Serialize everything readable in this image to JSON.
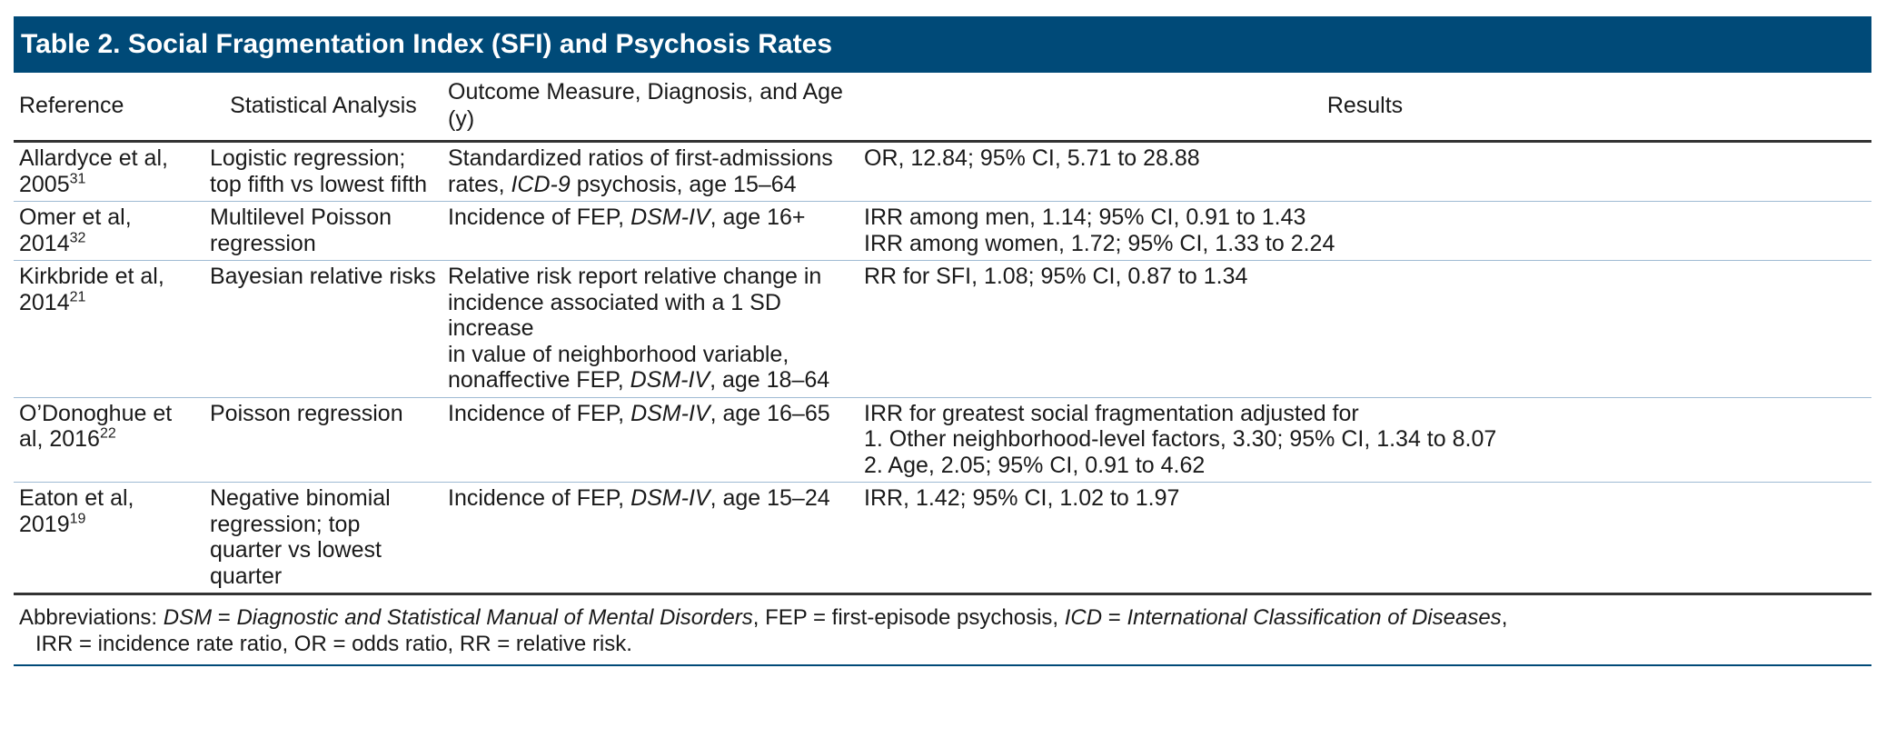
{
  "title": "Table 2. Social Fragmentation Index (SFI) and Psychosis Rates",
  "columns": [
    "Reference",
    "Statistical Analysis",
    "Outcome Measure, Diagnosis, and Age (y)",
    "Results"
  ],
  "rows": [
    {
      "ref": "Allardyce et al, 2005",
      "sup": "31",
      "analysis": "Logistic regression; top fifth vs lowest fifth",
      "outcome_html": "Standardized ratios of first-admissions<br>rates, <i>ICD-9</i> psychosis, age 15–64",
      "results": [
        "OR, 12.84; 95% CI, 5.71 to 28.88"
      ]
    },
    {
      "ref": "Omer et al, 2014",
      "sup": "32",
      "analysis": "Multilevel Poisson regression",
      "outcome_html": "Incidence of FEP, <i>DSM-IV</i>, age 16+",
      "results": [
        "IRR among men, 1.14; 95% CI, 0.91 to 1.43",
        "IRR among women, 1.72; 95% CI, 1.33 to 2.24"
      ]
    },
    {
      "ref": "Kirkbride et al, 2014",
      "sup": "21",
      "analysis": "Bayesian relative risks",
      "outcome_html": "Relative risk report relative change in<br>incidence associated with a 1 SD increase<br>in value of neighborhood variable,<br>nonaffective FEP, <i>DSM-IV</i>, age 18–64",
      "results": [
        "RR for SFI, 1.08; 95% CI, 0.87 to 1.34"
      ]
    },
    {
      "ref": "O’Donoghue et al, 2016",
      "sup": "22",
      "analysis": "Poisson regression",
      "outcome_html": "Incidence of FEP, <i>DSM-IV</i>, age 16–65",
      "results": [
        "IRR for greatest social fragmentation adjusted for",
        "1. Other neighborhood-level factors, 3.30; 95% CI, 1.34 to 8.07",
        "2. Age, 2.05; 95% CI, 0.91 to 4.62"
      ]
    },
    {
      "ref": "Eaton et al, 2019",
      "sup": "19",
      "analysis": "Negative binomial regression; top quarter vs lowest quarter",
      "outcome_html": "Incidence of FEP, <i>DSM-IV</i>, age 15–24",
      "results": [
        "IRR, 1.42; 95% CI, 1.02 to 1.97"
      ]
    }
  ],
  "footnote_html": "Abbreviations: <i>DSM</i> = <i>Diagnostic and Statistical Manual of Mental Disorders</i>, FEP = first-episode psychosis, <i>ICD</i> = <i>International Classification of Diseases</i>,<br><span class=\"ind\">IRR = incidence rate ratio, OR = odds ratio, RR = relative risk.</span>",
  "colors": {
    "header_bg": "#004a78",
    "row_rule": "#9fbad3"
  }
}
